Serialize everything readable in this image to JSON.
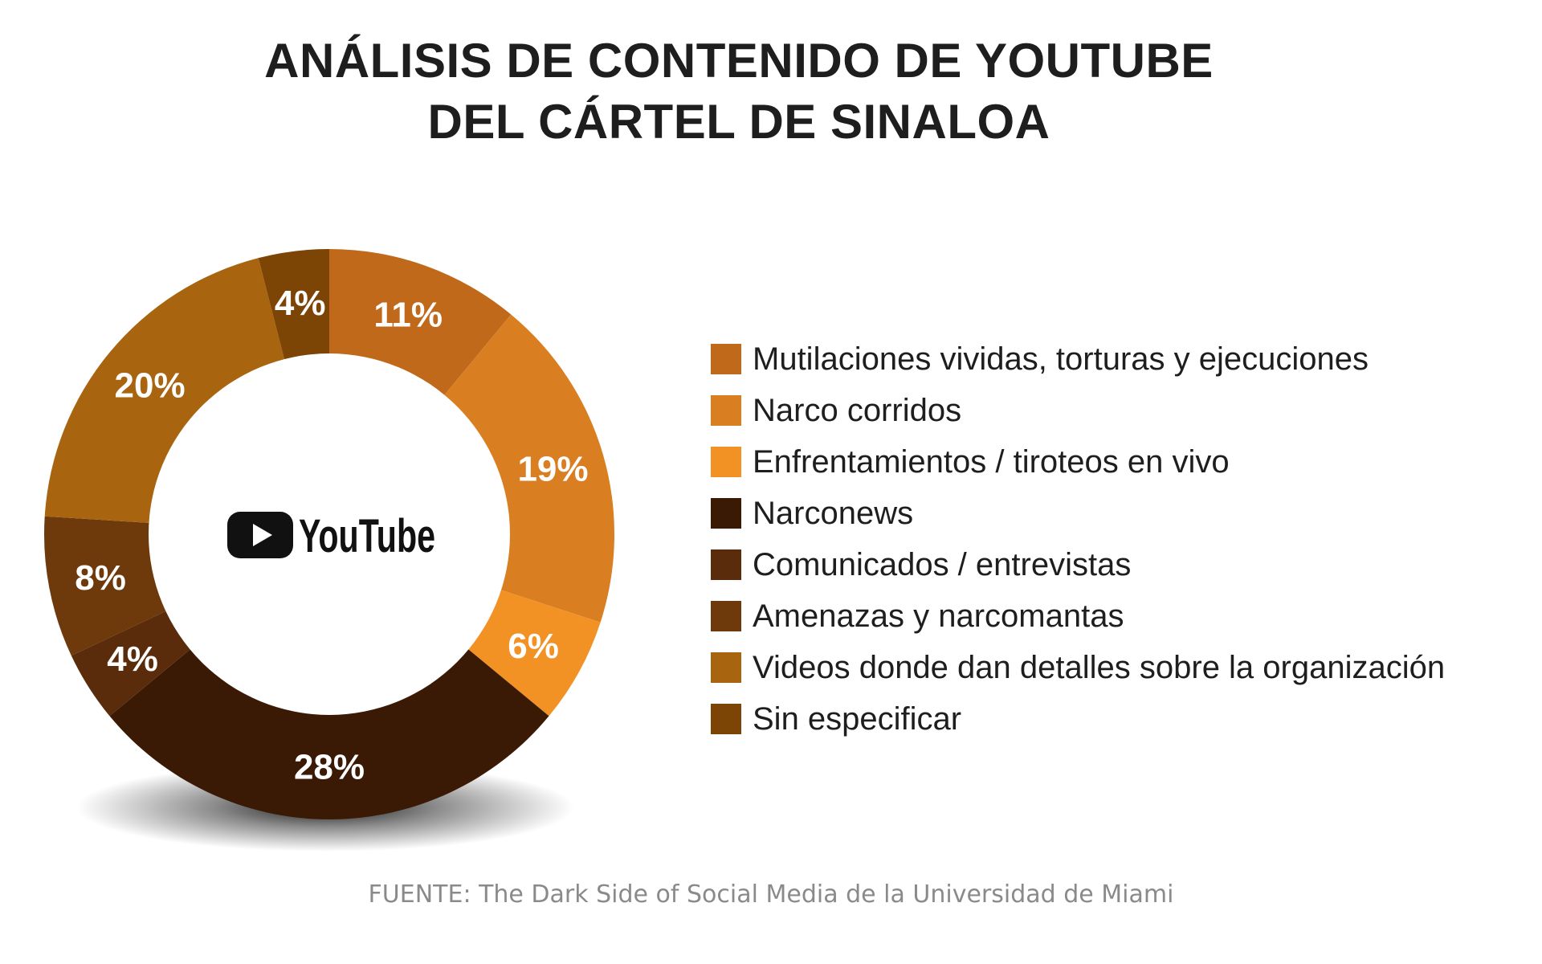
{
  "chart_data": {
    "type": "pie",
    "title_lines": [
      "ANÁLISIS DE CONTENIDO DE YOUTUBE",
      "DEL CÁRTEL DE SINALOA"
    ],
    "legend_placement": "right",
    "categories": [
      "Mutilaciones vividas, torturas y ejecuciones",
      "Narco corridos",
      "Enfrentamientos / tiroteos en vivo",
      "Narconews",
      "Comunicados / entrevistas",
      "Amenazas y narcomantas",
      "Videos donde dan detalles sobre la organización",
      "Sin especificar"
    ],
    "values": [
      11,
      19,
      6,
      28,
      4,
      8,
      20,
      4
    ],
    "labels": [
      "11%",
      "19%",
      "6%",
      "28%",
      "4%",
      "8%",
      "20%",
      "4%"
    ],
    "colors": [
      "#c0691b",
      "#d97f22",
      "#f39224",
      "#3a1a05",
      "#5a2c0b",
      "#6e3a0c",
      "#a8640f",
      "#7c4405"
    ],
    "legend_colors": [
      "#c0691b",
      "#d97f22",
      "#f39224",
      "#3a1a05",
      "#5a2c0b",
      "#6e3a0c",
      "#a8640f",
      "#7c4405"
    ],
    "center_logo": {
      "icon": "youtube-play-icon",
      "text": "YouTube"
    },
    "source": "FUENTE: The Dark Side of Social Media de la Universidad de Miami"
  }
}
